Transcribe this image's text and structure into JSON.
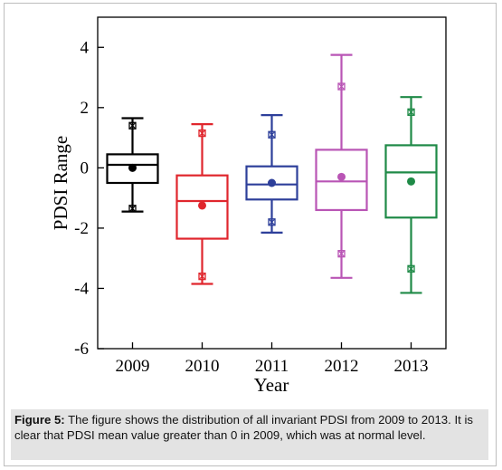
{
  "chart_data": {
    "type": "box",
    "xlabel": "Year",
    "ylabel": "PDSI Range",
    "ylim": [
      -6,
      5
    ],
    "yticks": [
      4,
      2,
      0,
      -2,
      -4,
      -6
    ],
    "grid": false,
    "categories": [
      "2009",
      "2010",
      "2011",
      "2012",
      "2013"
    ],
    "series": [
      {
        "category": "2009",
        "color": "#000000",
        "min": -1.45,
        "p1": -1.35,
        "q1": -0.5,
        "median": 0.1,
        "q3": 0.45,
        "p99": 1.4,
        "max": 1.65,
        "mean": 0.0
      },
      {
        "category": "2010",
        "color": "#e0262d",
        "min": -3.85,
        "p1": -3.6,
        "q1": -2.35,
        "median": -1.1,
        "q3": -0.25,
        "p99": 1.15,
        "max": 1.45,
        "mean": -1.25
      },
      {
        "category": "2011",
        "color": "#2d3f9a",
        "min": -2.15,
        "p1": -1.8,
        "q1": -1.05,
        "median": -0.55,
        "q3": 0.05,
        "p99": 1.1,
        "max": 1.75,
        "mean": -0.5
      },
      {
        "category": "2012",
        "color": "#b955b5",
        "min": -3.65,
        "p1": -2.85,
        "q1": -1.4,
        "median": -0.45,
        "q3": 0.6,
        "p99": 2.7,
        "max": 3.75,
        "mean": -0.3
      },
      {
        "category": "2013",
        "color": "#1f8a47",
        "min": -4.15,
        "p1": -3.35,
        "q1": -1.65,
        "median": -0.15,
        "q3": 0.75,
        "p99": 1.85,
        "max": 2.35,
        "mean": -0.45
      }
    ]
  },
  "caption": {
    "lead": "Figure 5:",
    "text": " The figure shows the distribution of all invariant PDSI from 2009 to 2013. It is clear that PDSI mean value greater than 0 in 2009, which was at normal level."
  }
}
